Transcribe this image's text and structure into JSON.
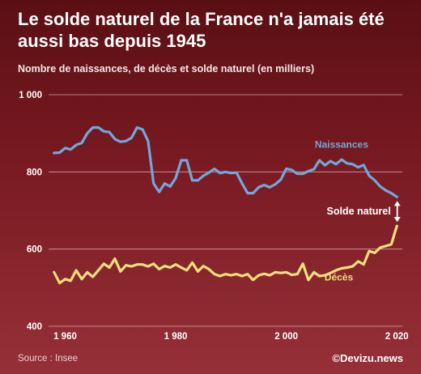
{
  "header": {
    "title": "Le solde naturel de la France n'a jamais été aussi bas depuis 1945",
    "subtitle": "Nombre de naissances, de décès et solde naturel (en milliers)"
  },
  "footer": {
    "source": "Source : Insee",
    "credit": "©Devizu.news"
  },
  "colors": {
    "naissances": "#6fa8dc",
    "deces": "#f2df7a",
    "grid": "#e8d2d2",
    "text": "#ffffff"
  },
  "chart_data": {
    "type": "line",
    "title": "Le solde naturel de la France n'a jamais été aussi bas depuis 1945",
    "subtitle": "Nombre de naissances, de décès et solde naturel (en milliers)",
    "xlim": [
      1957,
      2021
    ],
    "ylim": [
      400,
      1000
    ],
    "yticks": [
      400,
      600,
      800,
      1000
    ],
    "ytick_labels": [
      "400",
      "600",
      "800",
      "1 000"
    ],
    "xticks": [
      1960,
      1980,
      2000,
      2020
    ],
    "xtick_labels": [
      "1 960",
      "1 980",
      "2 000",
      "2 020"
    ],
    "grid": true,
    "annotation": "Solde naturel",
    "series": [
      {
        "name": "Naissances",
        "color": "#6fa8dc",
        "x": [
          1958,
          1959,
          1960,
          1961,
          1962,
          1963,
          1964,
          1965,
          1966,
          1967,
          1968,
          1969,
          1970,
          1971,
          1972,
          1973,
          1974,
          1975,
          1976,
          1977,
          1978,
          1979,
          1980,
          1981,
          1982,
          1983,
          1984,
          1985,
          1986,
          1987,
          1988,
          1989,
          1990,
          1991,
          1992,
          1993,
          1994,
          1995,
          1996,
          1997,
          1998,
          1999,
          2000,
          2001,
          2002,
          2003,
          2004,
          2005,
          2006,
          2007,
          2008,
          2009,
          2010,
          2011,
          2012,
          2013,
          2014,
          2015,
          2016,
          2017,
          2018,
          2019,
          2020
        ],
        "values": [
          849,
          850,
          862,
          858,
          870,
          875,
          900,
          915,
          915,
          905,
          903,
          885,
          878,
          880,
          888,
          915,
          910,
          880,
          770,
          748,
          770,
          762,
          784,
          830,
          830,
          778,
          778,
          790,
          798,
          808,
          797,
          800,
          797,
          798,
          770,
          745,
          745,
          760,
          766,
          760,
          768,
          780,
          808,
          805,
          795,
          795,
          802,
          807,
          830,
          817,
          828,
          820,
          832,
          822,
          820,
          812,
          818,
          790,
          778,
          762,
          752,
          745,
          735
        ]
      },
      {
        "name": "Décès",
        "color": "#f2df7a",
        "x": [
          1958,
          1959,
          1960,
          1961,
          1962,
          1963,
          1964,
          1965,
          1966,
          1967,
          1968,
          1969,
          1970,
          1971,
          1972,
          1973,
          1974,
          1975,
          1976,
          1977,
          1978,
          1979,
          1980,
          1981,
          1982,
          1983,
          1984,
          1985,
          1986,
          1987,
          1988,
          1989,
          1990,
          1991,
          1992,
          1993,
          1994,
          1995,
          1996,
          1997,
          1998,
          1999,
          2000,
          2001,
          2002,
          2003,
          2004,
          2005,
          2006,
          2007,
          2008,
          2009,
          2010,
          2011,
          2012,
          2013,
          2014,
          2015,
          2016,
          2017,
          2018,
          2019,
          2020
        ],
        "values": [
          540,
          512,
          522,
          518,
          545,
          522,
          540,
          528,
          545,
          562,
          552,
          575,
          542,
          558,
          555,
          560,
          560,
          555,
          562,
          548,
          556,
          552,
          560,
          552,
          545,
          565,
          542,
          556,
          548,
          535,
          530,
          535,
          532,
          535,
          530,
          535,
          520,
          532,
          536,
          532,
          540,
          538,
          540,
          533,
          535,
          562,
          520,
          540,
          530,
          532,
          538,
          545,
          550,
          552,
          555,
          568,
          560,
          595,
          590,
          604,
          608,
          612,
          660
        ]
      }
    ]
  }
}
